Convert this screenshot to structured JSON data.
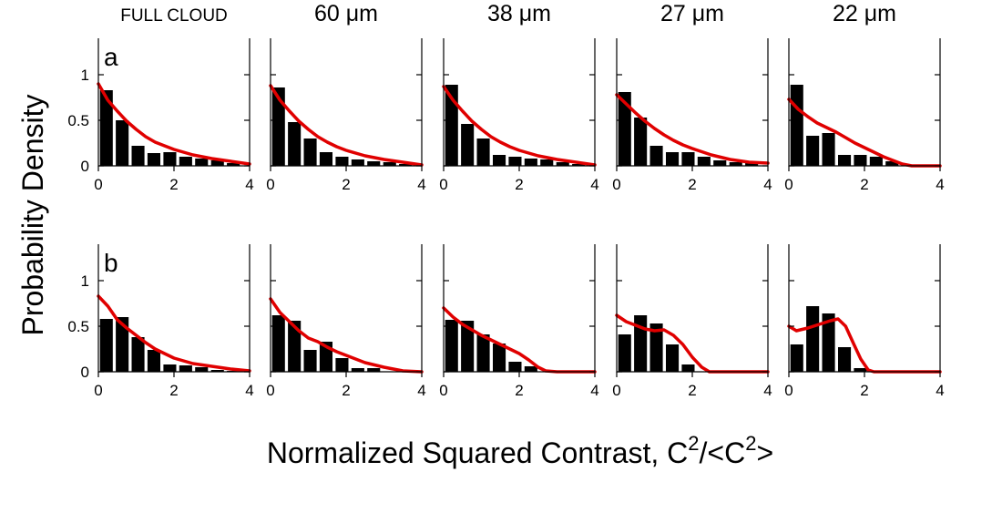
{
  "chart_data": {
    "type": "bar",
    "ylabel": "Probability Density",
    "xlabel": {
      "main": "Normalized Squared Contrast, C",
      "sup1": "2",
      "mid": "/<C",
      "sup2": "2",
      "end": ">"
    },
    "column_titles": [
      "FULL CLOUD",
      "60 μm",
      "38 μm",
      "27 μm",
      "22 μm"
    ],
    "row_labels": [
      "a",
      "b"
    ],
    "x_ticks": [
      "0",
      "2",
      "4"
    ],
    "y_ticks": [
      "0",
      "0.5",
      "1"
    ],
    "xlim": [
      0,
      4
    ],
    "ylim": [
      0,
      1.4
    ],
    "bin_width": 0.42,
    "bin_centers": [
      0.21,
      0.63,
      1.05,
      1.47,
      1.89,
      2.31,
      2.73,
      3.15,
      3.57
    ],
    "series": {
      "measured": {
        "type": "bar",
        "color": "#000000"
      },
      "predicted": {
        "type": "line",
        "color": "#e00000"
      }
    },
    "panels": [
      [
        {
          "title": "FULL CLOUD",
          "row": "a",
          "bars": [
            0.83,
            0.5,
            0.22,
            0.14,
            0.15,
            0.1,
            0.08,
            0.06,
            0.03
          ],
          "curve": [
            [
              0,
              0.9
            ],
            [
              0.25,
              0.72
            ],
            [
              0.5,
              0.6
            ],
            [
              0.75,
              0.49
            ],
            [
              1,
              0.4
            ],
            [
              1.25,
              0.32
            ],
            [
              1.5,
              0.26
            ],
            [
              1.75,
              0.22
            ],
            [
              2,
              0.18
            ],
            [
              2.5,
              0.12
            ],
            [
              3,
              0.08
            ],
            [
              3.5,
              0.05
            ],
            [
              4,
              0.02
            ]
          ]
        },
        {
          "title": "60 μm",
          "row": "a",
          "bars": [
            0.86,
            0.48,
            0.3,
            0.15,
            0.1,
            0.07,
            0.05,
            0.04,
            0.02
          ],
          "curve": [
            [
              0,
              0.88
            ],
            [
              0.25,
              0.72
            ],
            [
              0.5,
              0.6
            ],
            [
              0.75,
              0.49
            ],
            [
              1,
              0.4
            ],
            [
              1.25,
              0.32
            ],
            [
              1.5,
              0.26
            ],
            [
              1.75,
              0.21
            ],
            [
              2,
              0.17
            ],
            [
              2.5,
              0.11
            ],
            [
              3,
              0.07
            ],
            [
              3.5,
              0.04
            ],
            [
              4,
              0.01
            ]
          ]
        },
        {
          "title": "38 μm",
          "row": "a",
          "bars": [
            0.89,
            0.46,
            0.3,
            0.12,
            0.1,
            0.08,
            0.07,
            0.04,
            0.02
          ],
          "curve": [
            [
              0,
              0.87
            ],
            [
              0.25,
              0.72
            ],
            [
              0.5,
              0.6
            ],
            [
              0.75,
              0.49
            ],
            [
              1,
              0.4
            ],
            [
              1.25,
              0.32
            ],
            [
              1.5,
              0.26
            ],
            [
              1.75,
              0.21
            ],
            [
              2,
              0.17
            ],
            [
              2.5,
              0.11
            ],
            [
              3,
              0.07
            ],
            [
              3.5,
              0.04
            ],
            [
              4,
              0.01
            ]
          ]
        },
        {
          "title": "27 μm",
          "row": "a",
          "bars": [
            0.81,
            0.53,
            0.22,
            0.15,
            0.15,
            0.1,
            0.06,
            0.04,
            0.03
          ],
          "curve": [
            [
              0,
              0.78
            ],
            [
              0.25,
              0.68
            ],
            [
              0.5,
              0.58
            ],
            [
              0.75,
              0.49
            ],
            [
              1,
              0.41
            ],
            [
              1.25,
              0.34
            ],
            [
              1.5,
              0.28
            ],
            [
              1.75,
              0.23
            ],
            [
              2,
              0.19
            ],
            [
              2.5,
              0.12
            ],
            [
              3,
              0.07
            ],
            [
              3.5,
              0.04
            ],
            [
              4,
              0.03
            ]
          ]
        },
        {
          "title": "22 μm",
          "row": "a",
          "bars": [
            0.89,
            0.33,
            0.36,
            0.12,
            0.12,
            0.1,
            0.05,
            0.0,
            0.0
          ],
          "curve": [
            [
              0,
              0.73
            ],
            [
              0.25,
              0.62
            ],
            [
              0.5,
              0.54
            ],
            [
              0.75,
              0.47
            ],
            [
              1,
              0.42
            ],
            [
              1.25,
              0.37
            ],
            [
              1.5,
              0.31
            ],
            [
              1.75,
              0.25
            ],
            [
              2,
              0.2
            ],
            [
              2.25,
              0.15
            ],
            [
              2.5,
              0.1
            ],
            [
              2.75,
              0.06
            ],
            [
              3,
              0.02
            ],
            [
              3.25,
              0.0
            ],
            [
              4,
              0.0
            ]
          ]
        }
      ],
      [
        {
          "title": "FULL CLOUD",
          "row": "b",
          "bars": [
            0.58,
            0.6,
            0.38,
            0.24,
            0.08,
            0.07,
            0.05,
            0.02,
            0.01
          ],
          "curve": [
            [
              0,
              0.83
            ],
            [
              0.25,
              0.72
            ],
            [
              0.5,
              0.57
            ],
            [
              0.75,
              0.48
            ],
            [
              1,
              0.4
            ],
            [
              1.25,
              0.32
            ],
            [
              1.5,
              0.25
            ],
            [
              1.75,
              0.2
            ],
            [
              2,
              0.15
            ],
            [
              2.5,
              0.09
            ],
            [
              3,
              0.06
            ],
            [
              3.5,
              0.03
            ],
            [
              4,
              0.01
            ]
          ]
        },
        {
          "title": "60 μm",
          "row": "b",
          "bars": [
            0.62,
            0.56,
            0.24,
            0.33,
            0.15,
            0.04,
            0.04,
            0.0,
            0.0
          ],
          "curve": [
            [
              0,
              0.8
            ],
            [
              0.25,
              0.65
            ],
            [
              0.5,
              0.55
            ],
            [
              0.75,
              0.45
            ],
            [
              1,
              0.37
            ],
            [
              1.25,
              0.33
            ],
            [
              1.5,
              0.27
            ],
            [
              1.75,
              0.22
            ],
            [
              2,
              0.18
            ],
            [
              2.25,
              0.14
            ],
            [
              2.5,
              0.1
            ],
            [
              3,
              0.05
            ],
            [
              3.5,
              0.01
            ],
            [
              4,
              0.0
            ]
          ]
        },
        {
          "title": "38 μm",
          "row": "b",
          "bars": [
            0.57,
            0.56,
            0.41,
            0.31,
            0.11,
            0.06,
            0.0,
            0.0,
            0.0
          ],
          "curve": [
            [
              0,
              0.7
            ],
            [
              0.25,
              0.6
            ],
            [
              0.5,
              0.52
            ],
            [
              0.75,
              0.46
            ],
            [
              1,
              0.4
            ],
            [
              1.25,
              0.35
            ],
            [
              1.5,
              0.3
            ],
            [
              1.75,
              0.25
            ],
            [
              2,
              0.2
            ],
            [
              2.25,
              0.13
            ],
            [
              2.5,
              0.05
            ],
            [
              2.7,
              0.01
            ],
            [
              3,
              0.0
            ],
            [
              4,
              0.0
            ]
          ]
        },
        {
          "title": "27 μm",
          "row": "b",
          "bars": [
            0.41,
            0.62,
            0.53,
            0.3,
            0.08,
            0.0,
            0.0,
            0.0,
            0.0
          ],
          "curve": [
            [
              0,
              0.62
            ],
            [
              0.25,
              0.55
            ],
            [
              0.5,
              0.51
            ],
            [
              0.75,
              0.47
            ],
            [
              1,
              0.45
            ],
            [
              1.25,
              0.46
            ],
            [
              1.5,
              0.4
            ],
            [
              1.75,
              0.3
            ],
            [
              2,
              0.16
            ],
            [
              2.25,
              0.05
            ],
            [
              2.45,
              0.0
            ],
            [
              4,
              0.0
            ]
          ]
        },
        {
          "title": "22 μm",
          "row": "b",
          "bars": [
            0.3,
            0.72,
            0.64,
            0.27,
            0.04,
            0.0,
            0.0,
            0.0,
            0.0
          ],
          "curve": [
            [
              0,
              0.5
            ],
            [
              0.2,
              0.45
            ],
            [
              0.5,
              0.48
            ],
            [
              0.8,
              0.52
            ],
            [
              1.1,
              0.56
            ],
            [
              1.3,
              0.58
            ],
            [
              1.5,
              0.5
            ],
            [
              1.7,
              0.32
            ],
            [
              1.9,
              0.14
            ],
            [
              2.1,
              0.02
            ],
            [
              2.25,
              0.0
            ],
            [
              4,
              0.0
            ]
          ]
        }
      ]
    ]
  }
}
